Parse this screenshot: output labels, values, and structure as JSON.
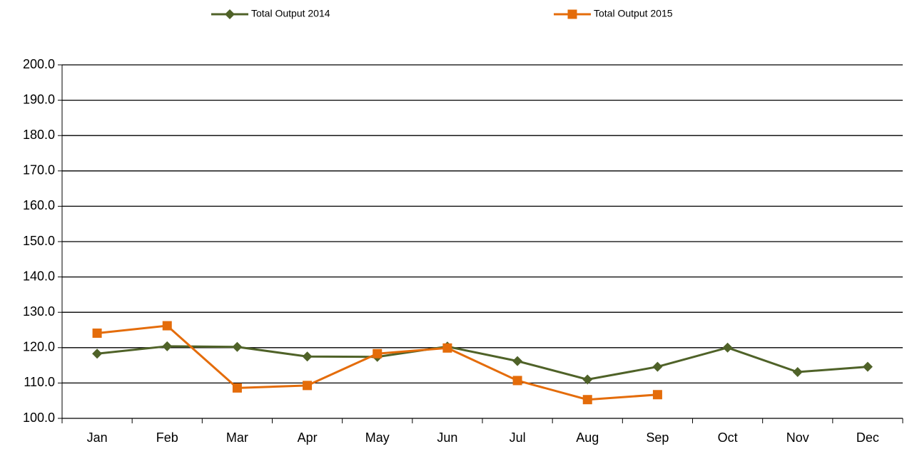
{
  "chart_data": {
    "type": "line",
    "categories": [
      "Jan",
      "Feb",
      "Mar",
      "Apr",
      "May",
      "Jun",
      "Jul",
      "Aug",
      "Sep",
      "Oct",
      "Nov",
      "Dec"
    ],
    "series": [
      {
        "name": "Total Output 2014",
        "color": "#4f6228",
        "marker": "diamond",
        "values": [
          118.3,
          120.4,
          120.2,
          117.5,
          117.4,
          120.3,
          116.2,
          111.0,
          114.6,
          120.0,
          113.1,
          114.6
        ]
      },
      {
        "name": "Total Output 2015",
        "color": "#e46c0a",
        "marker": "square",
        "values": [
          124.1,
          126.2,
          108.6,
          109.3,
          118.3,
          119.9,
          110.7,
          105.3,
          106.7,
          null,
          null,
          null
        ]
      }
    ],
    "ylim": [
      100,
      200
    ],
    "yticks": [
      {
        "value": 100,
        "label": "100.0"
      },
      {
        "value": 110,
        "label": "110.0"
      },
      {
        "value": 120,
        "label": "120.0"
      },
      {
        "value": 130,
        "label": "130.0"
      },
      {
        "value": 140,
        "label": "140.0"
      },
      {
        "value": 150,
        "label": "150.0"
      },
      {
        "value": 160,
        "label": "160.0"
      },
      {
        "value": 170,
        "label": "170.0"
      },
      {
        "value": 180,
        "label": "180.0"
      },
      {
        "value": 190,
        "label": "190.0"
      },
      {
        "value": 200,
        "label": "200.0"
      }
    ],
    "grid": true,
    "legend": "top"
  }
}
